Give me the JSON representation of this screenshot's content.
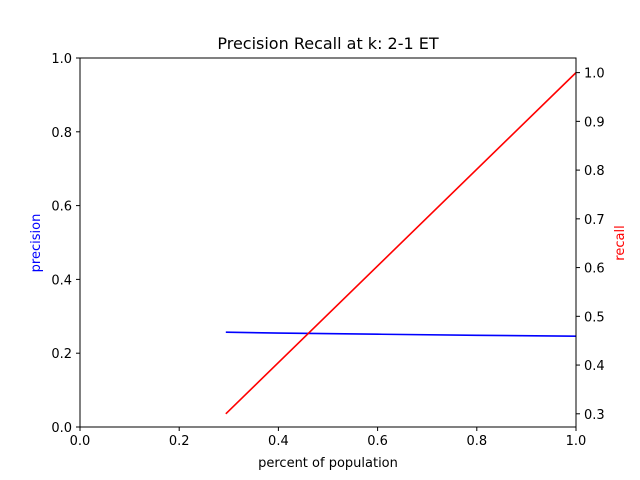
{
  "chart_data": {
    "type": "line",
    "title": "Precision Recall at k: 2-1 ET",
    "xlabel": "percent of population",
    "ylabel_left": "precision",
    "ylabel_right": "recall",
    "xlim": [
      0.0,
      1.0
    ],
    "ylim_left": [
      0.0,
      1.0
    ],
    "ylim_right": [
      0.2729,
      1.03
    ],
    "x_ticks": [
      "0.0",
      "0.2",
      "0.4",
      "0.6",
      "0.8",
      "1.0"
    ],
    "y_left_ticks": [
      "0.0",
      "0.2",
      "0.4",
      "0.6",
      "0.8",
      "1.0"
    ],
    "y_right_ticks": [
      "0.3",
      "0.4",
      "0.5",
      "0.6",
      "0.7",
      "0.8",
      "0.9",
      "1.0"
    ],
    "grid": false,
    "series": [
      {
        "label": "precision",
        "axis": "left",
        "color": "#0000ff",
        "x": [
          0.294,
          0.4,
          0.6,
          0.8,
          1.0
        ],
        "y": [
          0.257,
          0.2545,
          0.2515,
          0.2485,
          0.246
        ]
      },
      {
        "label": "recall",
        "axis": "right",
        "color": "#ff0000",
        "x": [
          0.294,
          1.0
        ],
        "y": [
          0.3,
          1.0
        ]
      }
    ]
  }
}
